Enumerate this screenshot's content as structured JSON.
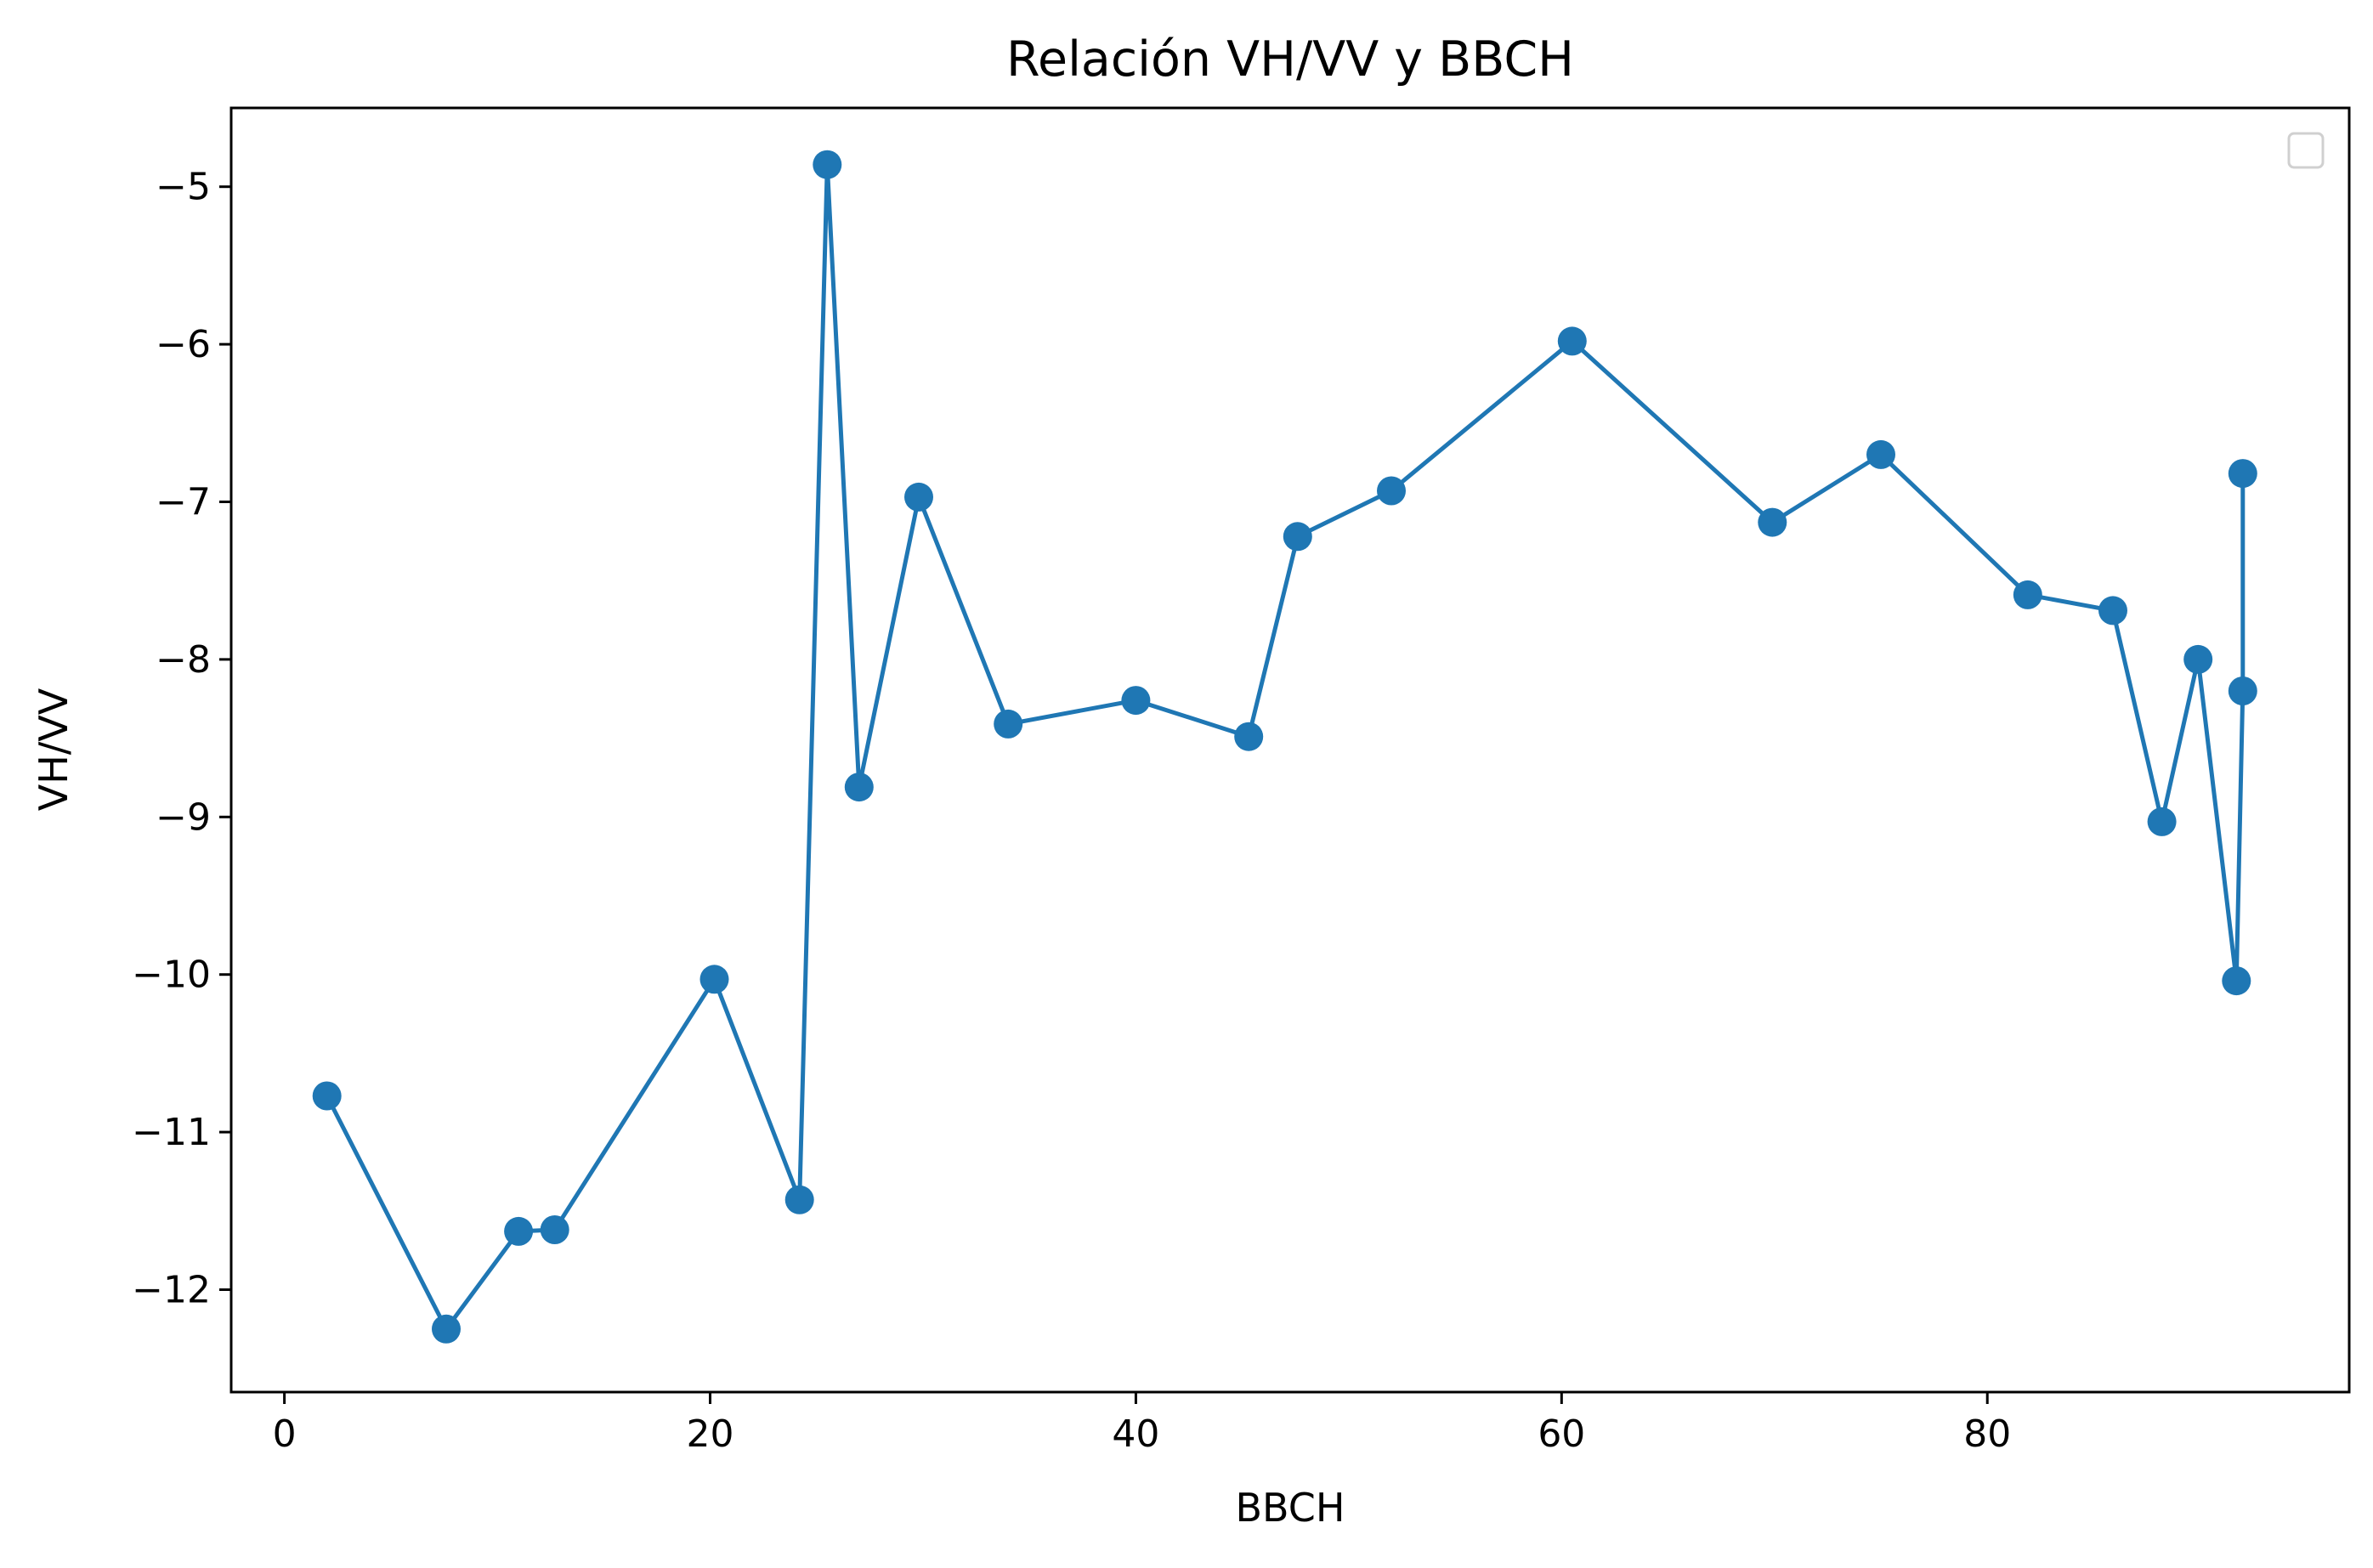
{
  "chart_data": {
    "type": "line",
    "title": "Relación VH/VV y BBCH",
    "xlabel": "BBCH",
    "ylabel": "VH/VV",
    "xlim": [
      -2.5,
      97
    ],
    "ylim": [
      -12.65,
      -4.5
    ],
    "x_ticks": [
      0,
      20,
      40,
      60,
      80
    ],
    "y_ticks": [
      -12,
      -11,
      -10,
      -9,
      -8,
      -7,
      -6,
      -5
    ],
    "x_tick_labels": [
      "0",
      "20",
      "40",
      "60",
      "80"
    ],
    "y_tick_labels": [
      "−12",
      "−11",
      "−10",
      "−9",
      "−8",
      "−7",
      "−6",
      "−5"
    ],
    "grid": false,
    "legend": {
      "position": "upper-right",
      "entries": []
    },
    "colors": {
      "series": "#1f77b4",
      "axes": "#000000"
    },
    "marker": "circle",
    "series": [
      {
        "x": [
          2,
          7.6,
          11,
          12.7,
          20.2,
          24.2,
          25.5,
          27,
          29.8,
          34,
          40,
          45.3,
          47.6,
          52,
          60.5,
          69.9,
          75,
          81.9,
          85.9,
          88.2,
          89.9,
          91.7,
          92,
          92
        ],
        "y": [
          -10.77,
          -12.25,
          -11.63,
          -11.62,
          -10.03,
          -11.43,
          -4.86,
          -8.81,
          -6.97,
          -8.41,
          -8.26,
          -8.49,
          -7.22,
          -6.93,
          -5.98,
          -7.13,
          -6.7,
          -7.59,
          -7.69,
          -9.03,
          -8.0,
          -10.04,
          -8.2,
          -6.82
        ]
      }
    ]
  }
}
